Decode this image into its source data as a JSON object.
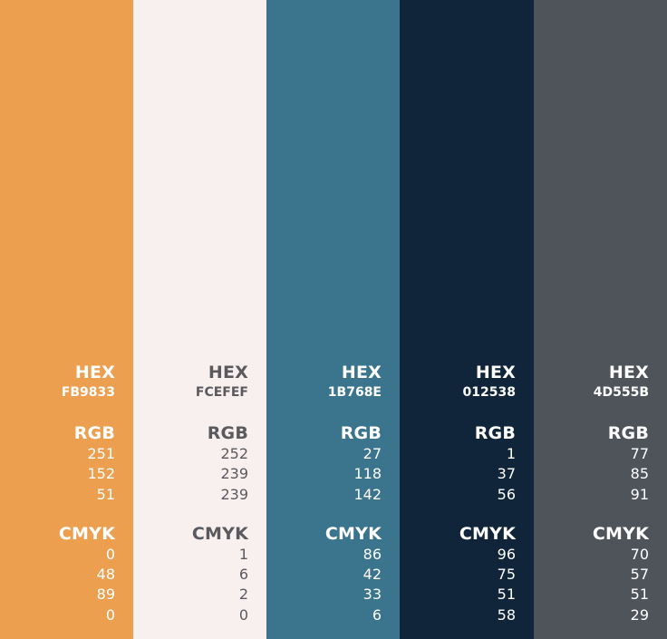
{
  "labels": {
    "hex": "HEX",
    "rgb": "RGB",
    "cmyk": "CMYK"
  },
  "swatches": [
    {
      "color": "#EB9F4F",
      "text_color": "#FFFFFF",
      "hex": "FB9833",
      "rgb": [
        "251",
        "152",
        "51"
      ],
      "cmyk": [
        "0",
        "48",
        "89",
        "0"
      ]
    },
    {
      "color": "#F8EFEF",
      "text_color": "#5A5A5E",
      "hex": "FCEFEF",
      "rgb": [
        "252",
        "239",
        "239"
      ],
      "cmyk": [
        "1",
        "6",
        "2",
        "0"
      ]
    },
    {
      "color": "#3A748D",
      "text_color": "#FFFFFF",
      "hex": "1B768E",
      "rgb": [
        "27",
        "118",
        "142"
      ],
      "cmyk": [
        "86",
        "42",
        "33",
        "6"
      ]
    },
    {
      "color": "#10253A",
      "text_color": "#FFFFFF",
      "hex": "012538",
      "rgb": [
        "1",
        "37",
        "56"
      ],
      "cmyk": [
        "96",
        "75",
        "51",
        "58"
      ]
    },
    {
      "color": "#4F545B",
      "text_color": "#FFFFFF",
      "hex": "4D555B",
      "rgb": [
        "77",
        "85",
        "91"
      ],
      "cmyk": [
        "70",
        "57",
        "51",
        "29"
      ]
    }
  ]
}
